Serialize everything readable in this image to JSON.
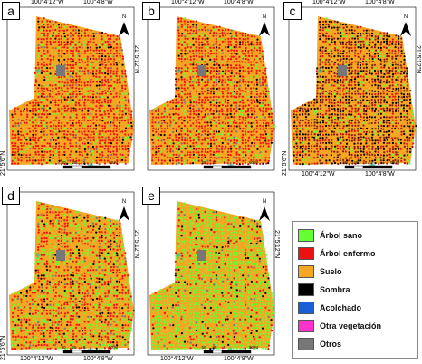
{
  "panels": [
    {
      "letter": "a",
      "top_left": "100°4'12\"W",
      "top_right": "100°4'8\"W",
      "bot_left": "",
      "bot_right": "",
      "left_lat": "21°5'6\"N",
      "right_lat": "21°5'12\"N",
      "scheme": "red"
    },
    {
      "letter": "b",
      "top_left": "100°4'12\"W",
      "top_right": "100°4'8\"W",
      "bot_left": "",
      "bot_right": "",
      "left_lat": "",
      "right_lat": "",
      "scheme": "red"
    },
    {
      "letter": "c",
      "top_left": "100°4'12\"W",
      "top_right": "100°4'8\"W",
      "bot_left": "100°4'12\"W",
      "bot_right": "100°4'8\"W",
      "left_lat": "21°5'6\"N",
      "right_lat": "21°5'12\"N",
      "scheme": "dark"
    },
    {
      "letter": "d",
      "top_left": "",
      "top_right": "",
      "bot_left": "100°4'12\"W",
      "bot_right": "100°4'8\"W",
      "left_lat": "21°5'6\"N",
      "right_lat": "21°5'12\"N",
      "scheme": "mixed"
    },
    {
      "letter": "e",
      "top_left": "",
      "top_right": "",
      "bot_left": "100°4'12\"W",
      "bot_right": "100°4'8\"W",
      "left_lat": "",
      "right_lat": "21°5'12\"N",
      "scheme": "green"
    }
  ],
  "scale": {
    "labels": [
      "50",
      "25",
      "0",
      "50 M"
    ]
  },
  "north_label": "N",
  "legend": [
    {
      "label": "Árbol sano",
      "color": "#66ff33"
    },
    {
      "label": "Árbol enfermo",
      "color": "#ee1111"
    },
    {
      "label": "Suelo",
      "color": "#f5a623"
    },
    {
      "label": "Sombra",
      "color": "#000000"
    },
    {
      "label": "Acolchado",
      "color": "#1a5fd6"
    },
    {
      "label": "Otra vegetación",
      "color": "#ff33cc"
    },
    {
      "label": "Otros",
      "color": "#777777"
    }
  ]
}
